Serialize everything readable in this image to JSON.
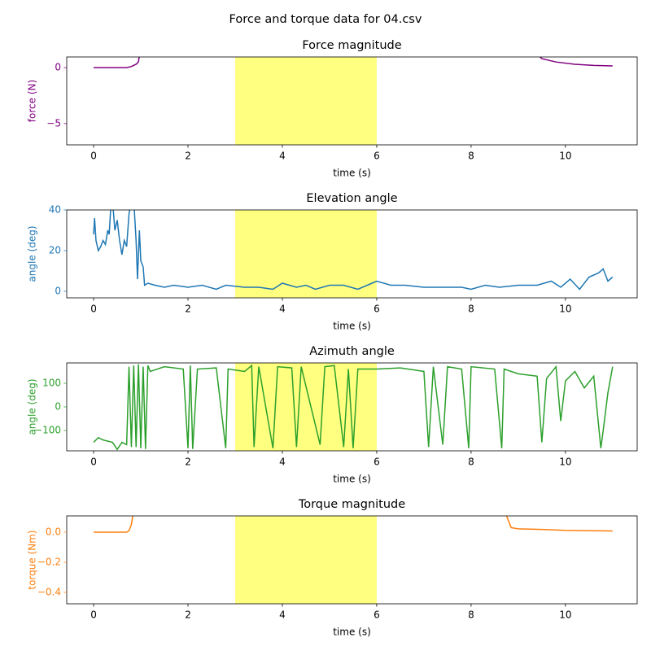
{
  "title": "Force and torque data for 04.csv",
  "chart_data": [
    {
      "type": "line",
      "title": "Force magnitude",
      "xlabel": "time (s)",
      "ylabel": "force (N)",
      "color": "#800080",
      "x": [
        0,
        0.5,
        0.7,
        0.8,
        0.9,
        0.95,
        1.0,
        9.2,
        9.5,
        9.8,
        10.2,
        10.6,
        11.0
      ],
      "values": [
        0,
        0,
        0,
        0.1,
        0.3,
        0.5,
        2,
        2,
        0.8,
        0.5,
        0.3,
        0.2,
        0.15
      ],
      "xlim": [
        -0.57,
        11.52
      ],
      "ylim": [
        -6.9,
        0.95
      ],
      "xticks": [
        0,
        2,
        4,
        6,
        8,
        10
      ],
      "yticks": [
        {
          "value": -5,
          "label": "−5"
        },
        0
      ],
      "span": [
        3,
        6
      ],
      "span_color": "#ffff80"
    },
    {
      "type": "line",
      "title": "Elevation angle",
      "xlabel": "time (s)",
      "ylabel": "angle (deg)",
      "color": "#1f77b4",
      "x": [
        0,
        0.02,
        0.05,
        0.1,
        0.15,
        0.2,
        0.25,
        0.3,
        0.33,
        0.36,
        0.4,
        0.45,
        0.5,
        0.55,
        0.6,
        0.65,
        0.7,
        0.75,
        0.8,
        0.85,
        0.9,
        0.93,
        0.97,
        1.0,
        1.05,
        1.08,
        1.15,
        1.3,
        1.5,
        1.7,
        2.0,
        2.3,
        2.6,
        2.8,
        3.2,
        3.5,
        3.8,
        4.0,
        4.3,
        4.5,
        4.7,
        5.0,
        5.3,
        5.6,
        5.9,
        6.0,
        6.3,
        6.6,
        7.0,
        7.4,
        7.8,
        8.0,
        8.3,
        8.6,
        9.0,
        9.4,
        9.7,
        9.9,
        10.1,
        10.3,
        10.5,
        10.7,
        10.8,
        10.9,
        11.0
      ],
      "values": [
        28,
        36,
        25,
        20,
        22,
        25,
        23,
        30,
        28,
        40,
        45,
        30,
        35,
        25,
        18,
        25,
        22,
        38,
        45,
        45,
        25,
        6,
        30,
        15,
        12,
        3,
        4,
        3,
        2,
        3,
        2,
        3,
        1,
        3,
        2,
        2,
        1,
        4,
        2,
        3,
        1,
        3,
        3,
        1,
        4,
        5,
        3,
        3,
        2,
        2,
        2,
        1,
        3,
        2,
        3,
        3,
        5,
        2,
        6,
        1,
        7,
        9,
        11,
        5,
        7
      ],
      "xlim": [
        -0.57,
        11.52
      ],
      "ylim": [
        -3.2,
        40
      ],
      "xticks": [
        0,
        2,
        4,
        6,
        8,
        10
      ],
      "yticks": [
        0,
        20,
        40
      ],
      "span": [
        3,
        6
      ],
      "span_color": "#ffff80"
    },
    {
      "type": "line",
      "title": "Azimuth angle",
      "xlabel": "time (s)",
      "ylabel": "angle (deg)",
      "color": "#2ca02c",
      "x": [
        0,
        0.1,
        0.2,
        0.4,
        0.5,
        0.6,
        0.7,
        0.75,
        0.8,
        0.85,
        0.9,
        0.95,
        1.0,
        1.05,
        1.1,
        1.15,
        1.2,
        1.5,
        1.9,
        2.0,
        2.05,
        2.1,
        2.2,
        2.6,
        2.8,
        2.85,
        3.2,
        3.35,
        3.4,
        3.5,
        3.8,
        3.9,
        4.2,
        4.3,
        4.4,
        4.8,
        4.9,
        5.1,
        5.3,
        5.4,
        5.5,
        5.6,
        6.0,
        6.5,
        7.0,
        7.1,
        7.2,
        7.4,
        7.5,
        7.8,
        7.95,
        8.0,
        8.5,
        8.65,
        8.7,
        9.0,
        9.4,
        9.5,
        9.6,
        9.8,
        9.9,
        10.0,
        10.2,
        10.4,
        10.6,
        10.75,
        10.8,
        10.9,
        11.0
      ],
      "values": [
        -150,
        -130,
        -140,
        -150,
        -180,
        -150,
        -160,
        170,
        -170,
        175,
        -170,
        180,
        -175,
        170,
        -178,
        175,
        150,
        170,
        160,
        -175,
        175,
        -178,
        160,
        165,
        -175,
        160,
        150,
        175,
        -170,
        170,
        -175,
        170,
        165,
        -170,
        170,
        -160,
        170,
        175,
        -170,
        160,
        -175,
        160,
        160,
        165,
        150,
        -170,
        170,
        -160,
        170,
        160,
        -175,
        170,
        160,
        -175,
        160,
        140,
        130,
        -150,
        120,
        170,
        -60,
        110,
        150,
        80,
        130,
        -175,
        -100,
        60,
        170
      ],
      "xlim": [
        -0.57,
        11.52
      ],
      "ylim": [
        -186,
        186
      ],
      "xticks": [
        0,
        2,
        4,
        6,
        8,
        10
      ],
      "yticks": [
        {
          "value": -100,
          "label": "−100"
        },
        0,
        100
      ],
      "span": [
        3,
        6
      ],
      "span_color": "#ffff80"
    },
    {
      "type": "line",
      "title": "Torque magnitude",
      "xlabel": "time (s)",
      "ylabel": "torque (Nm)",
      "color": "#ff7f0e",
      "x": [
        0,
        0.5,
        0.7,
        0.75,
        0.8,
        0.85,
        8.7,
        8.85,
        9.0,
        9.5,
        10.0,
        10.5,
        11.0
      ],
      "values": [
        0,
        0,
        0,
        0.01,
        0.05,
        0.15,
        0.15,
        0.03,
        0.022,
        0.018,
        0.012,
        0.01,
        0.008
      ],
      "xlim": [
        -0.57,
        11.52
      ],
      "ylim": [
        -0.476,
        0.108
      ],
      "xticks": [
        0,
        2,
        4,
        6,
        8,
        10
      ],
      "yticks": [
        {
          "value": -0.4,
          "label": "−0.4"
        },
        {
          "value": -0.2,
          "label": "−0.2"
        },
        {
          "value": 0,
          "label": "0.0"
        }
      ],
      "span": [
        3,
        6
      ],
      "span_color": "#ffff80"
    }
  ]
}
